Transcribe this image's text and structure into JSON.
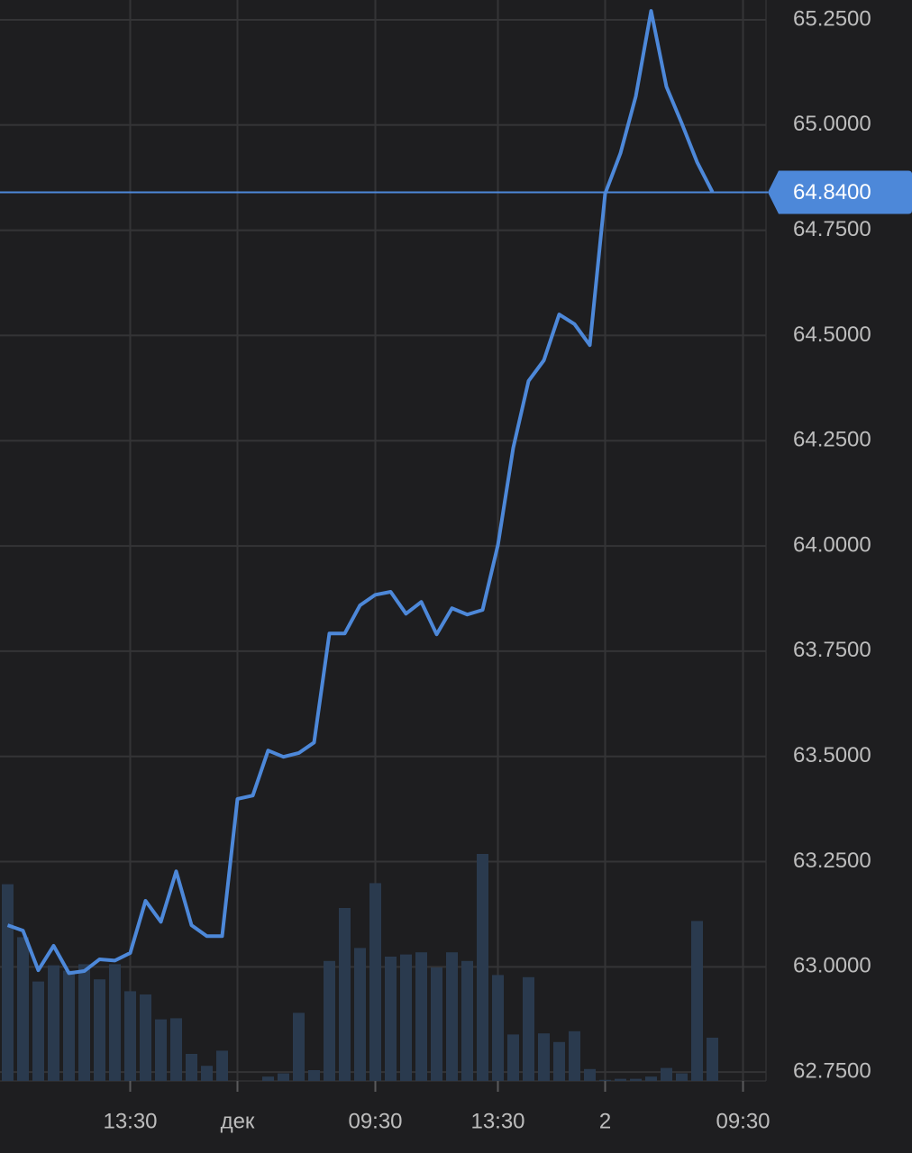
{
  "chart_data": {
    "type": "line",
    "categories": [
      null,
      null,
      null,
      null,
      null,
      null,
      null,
      null,
      "13:30",
      null,
      null,
      null,
      null,
      null,
      null,
      "дек",
      null,
      null,
      null,
      null,
      null,
      null,
      null,
      null,
      "09:30",
      null,
      null,
      null,
      null,
      null,
      null,
      null,
      "13:30",
      null,
      null,
      null,
      null,
      null,
      null,
      "2",
      null,
      null,
      null,
      null,
      null,
      null,
      null,
      null,
      "09:30",
      null
    ],
    "series": [
      {
        "color": "#4d88d9",
        "values": [
          63.099,
          63.086,
          62.992,
          63.05,
          62.985,
          62.99,
          63.018,
          63.015,
          63.033,
          63.157,
          63.107,
          63.227,
          63.099,
          63.073,
          63.073,
          63.399,
          63.407,
          63.514,
          63.499,
          63.508,
          63.533,
          63.792,
          63.792,
          63.859,
          63.884,
          63.891,
          63.839,
          63.867,
          63.79,
          63.852,
          63.837,
          63.848,
          64.002,
          64.233,
          64.392,
          64.441,
          64.55,
          64.527,
          64.477,
          64.837,
          64.933,
          65.068,
          65.271,
          65.091,
          65.004,
          64.912,
          64.841,
          null,
          null,
          null
        ]
      },
      {
        "type": "bar",
        "axis": "y2",
        "color": "#2a3a4e",
        "values": [
          18.2,
          13.3,
          9.2,
          10.7,
          10.2,
          10.8,
          9.4,
          10.8,
          8.3,
          8.0,
          5.7,
          5.8,
          2.5,
          1.4,
          2.8,
          0,
          0,
          0.4,
          0.7,
          6.3,
          1.0,
          11.1,
          16.0,
          12.3,
          18.3,
          11.5,
          11.7,
          11.9,
          10.5,
          11.9,
          11.1,
          21.0,
          9.8,
          4.3,
          9.6,
          4.4,
          3.6,
          4.6,
          1.1,
          0.1,
          0.2,
          0.2,
          0.4,
          1.2,
          0.7,
          14.8,
          4.0,
          null,
          null,
          null
        ]
      }
    ],
    "ylim": [
      62.729,
      65.297
    ],
    "yticks": [
      {
        "value": 62.75,
        "label": "62.7500"
      },
      {
        "value": 63.0,
        "label": "63.0000"
      },
      {
        "value": 63.25,
        "label": "63.2500"
      },
      {
        "value": 63.5,
        "label": "63.5000"
      },
      {
        "value": 63.75,
        "label": "63.7500"
      },
      {
        "value": 64.0,
        "label": "64.0000"
      },
      {
        "value": 64.25,
        "label": "64.2500"
      },
      {
        "value": 64.5,
        "label": "64.5000"
      },
      {
        "value": 64.75,
        "label": "64.7500"
      },
      {
        "value": 65.0,
        "label": "65.0000"
      },
      {
        "value": 65.25,
        "label": "65.2500"
      }
    ],
    "y2lim": [
      0,
      100
    ],
    "last_price": {
      "value": 64.84,
      "label": "64.8400"
    },
    "grid": true
  }
}
